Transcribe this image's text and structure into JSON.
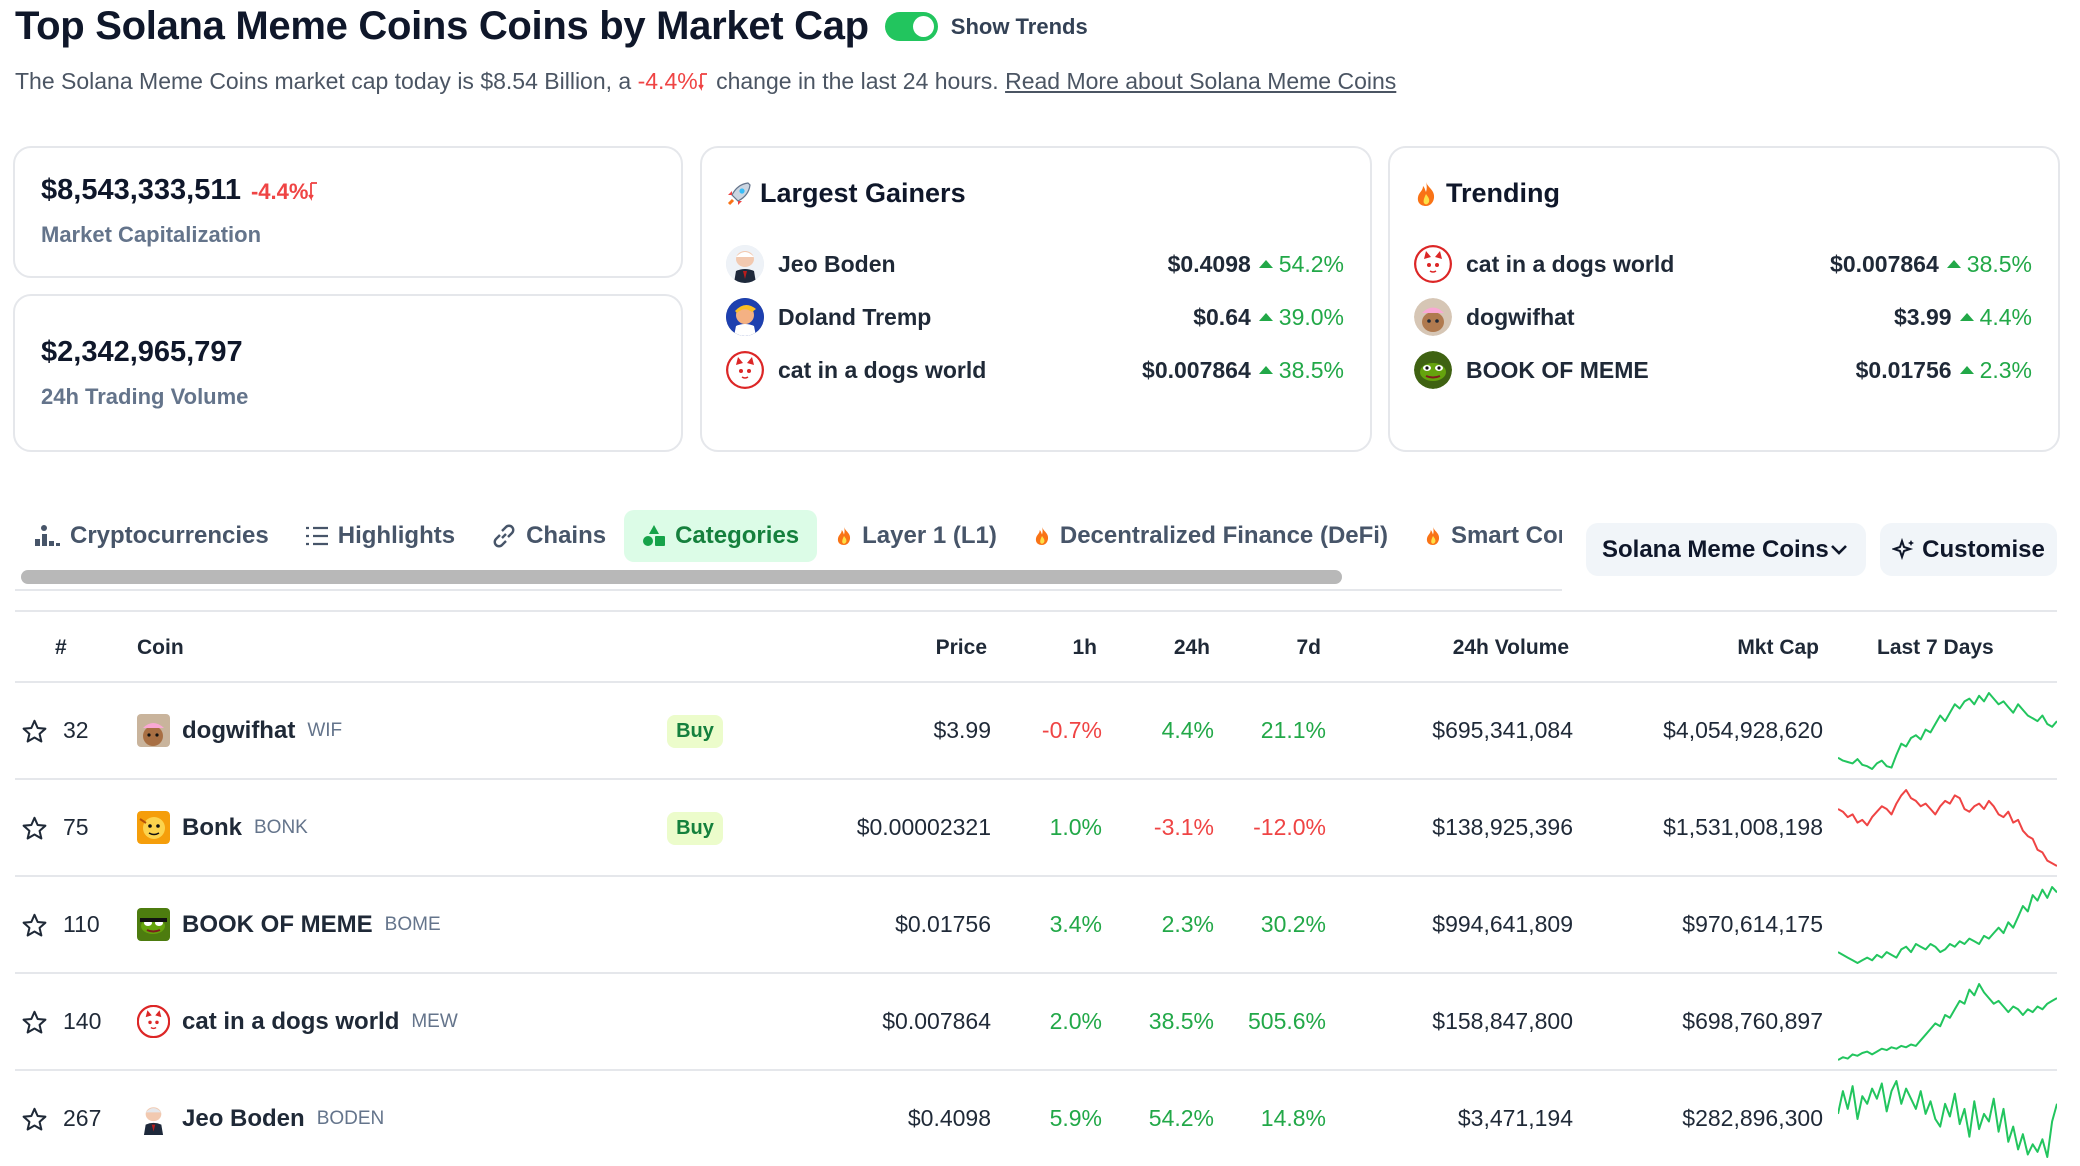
{
  "header": {
    "title": "Top Solana Meme Coins Coins by Market Cap",
    "toggle_label": "Show Trends",
    "toggle_on": true,
    "subtitle_prefix": "The Solana Meme Coins market cap today is $8.54 Billion, a",
    "subtitle_change": "-4.4%",
    "subtitle_suffix": "change in the last 24 hours.",
    "subtitle_link": "Read More about Solana Meme Coins"
  },
  "stats": {
    "market_cap": {
      "value": "$8,543,333,511",
      "change": "-4.4%",
      "label": "Market Capitalization"
    },
    "volume": {
      "value": "$2,342,965,797",
      "label": "24h Trading Volume"
    }
  },
  "gainers": {
    "title": "Largest Gainers",
    "icon": "rocket-icon",
    "items": [
      {
        "name": "Jeo Boden",
        "price": "$0.4098",
        "change": "54.2%"
      },
      {
        "name": "Doland Tremp",
        "price": "$0.64",
        "change": "39.0%"
      },
      {
        "name": "cat in a dogs world",
        "price": "$0.007864",
        "change": "38.5%"
      }
    ]
  },
  "trending": {
    "title": "Trending",
    "icon": "fire-icon",
    "items": [
      {
        "name": "cat in a dogs world",
        "price": "$0.007864",
        "change": "38.5%"
      },
      {
        "name": "dogwifhat",
        "price": "$3.99",
        "change": "4.4%"
      },
      {
        "name": "BOOK OF MEME",
        "price": "$0.01756",
        "change": "2.3%"
      }
    ]
  },
  "tabs": [
    {
      "label": "Cryptocurrencies",
      "icon": "bar-chart-icon",
      "active": false
    },
    {
      "label": "Highlights",
      "icon": "list-icon",
      "active": false
    },
    {
      "label": "Chains",
      "icon": "link-icon",
      "active": false
    },
    {
      "label": "Categories",
      "icon": "shapes-icon",
      "active": true
    },
    {
      "label": "Layer 1 (L1)",
      "icon": "fire-icon",
      "active": false
    },
    {
      "label": "Decentralized Finance (DeFi)",
      "icon": "fire-icon",
      "active": false
    },
    {
      "label": "Smart Contract Platform",
      "icon": "fire-icon",
      "active": false
    }
  ],
  "category_dropdown": {
    "label": "Solana Meme Coins"
  },
  "customise_button": {
    "label": "Customise"
  },
  "table": {
    "headers": {
      "rank": "#",
      "coin": "Coin",
      "price": "Price",
      "h1": "1h",
      "h24": "24h",
      "d7": "7d",
      "volume": "24h Volume",
      "mcap": "Mkt Cap",
      "spark": "Last 7 Days"
    },
    "buy_label": "Buy",
    "rows": [
      {
        "rank": "32",
        "name": "dogwifhat",
        "symbol": "WIF",
        "buy": true,
        "price": "$3.99",
        "h1": "-0.7%",
        "h24": "4.4%",
        "d7": "21.1%",
        "volume": "$695,341,084",
        "mcap": "$4,054,928,620",
        "trend": "up",
        "spark_color": "#22c55e",
        "spark": [
          20,
          18,
          17,
          16,
          19,
          15,
          14,
          12,
          16,
          18,
          14,
          13,
          22,
          30,
          28,
          34,
          36,
          33,
          40,
          38,
          44,
          50,
          46,
          52,
          58,
          55,
          60,
          62,
          58,
          64,
          60,
          66,
          62,
          58,
          60,
          56,
          52,
          58,
          54,
          50,
          48,
          46,
          50,
          44,
          42,
          46
        ]
      },
      {
        "rank": "75",
        "name": "Bonk",
        "symbol": "BONK",
        "buy": true,
        "price": "$0.00002321",
        "h1": "1.0%",
        "h24": "-3.1%",
        "d7": "-12.0%",
        "volume": "$138,925,396",
        "mcap": "$1,531,008,198",
        "trend": "down",
        "spark_color": "#ef4444",
        "spark": [
          50,
          48,
          44,
          46,
          40,
          42,
          38,
          44,
          48,
          52,
          50,
          46,
          54,
          60,
          64,
          58,
          56,
          52,
          54,
          50,
          46,
          52,
          56,
          54,
          60,
          58,
          50,
          48,
          52,
          54,
          50,
          56,
          52,
          46,
          44,
          48,
          40,
          42,
          34,
          30,
          28,
          20,
          18,
          12,
          10,
          8
        ]
      },
      {
        "rank": "110",
        "name": "BOOK OF MEME",
        "symbol": "BOME",
        "buy": false,
        "price": "$0.01756",
        "h1": "3.4%",
        "h24": "2.3%",
        "d7": "30.2%",
        "volume": "$994,641,809",
        "mcap": "$970,614,175",
        "trend": "up",
        "spark_color": "#22c55e",
        "spark": [
          16,
          14,
          12,
          10,
          8,
          10,
          12,
          10,
          14,
          12,
          16,
          14,
          12,
          18,
          20,
          16,
          22,
          20,
          18,
          22,
          20,
          16,
          18,
          22,
          20,
          24,
          22,
          26,
          24,
          22,
          28,
          26,
          30,
          34,
          30,
          38,
          34,
          42,
          50,
          46,
          58,
          54,
          62,
          56,
          64,
          60
        ]
      },
      {
        "rank": "140",
        "name": "cat in a dogs world",
        "symbol": "MEW",
        "buy": false,
        "price": "$0.007864",
        "h1": "2.0%",
        "h24": "38.5%",
        "d7": "505.6%",
        "volume": "$158,847,800",
        "mcap": "$698,760,897",
        "trend": "up",
        "spark_color": "#22c55e",
        "spark": [
          4,
          6,
          5,
          8,
          7,
          9,
          10,
          8,
          10,
          12,
          11,
          13,
          12,
          14,
          13,
          15,
          14,
          18,
          22,
          26,
          30,
          28,
          36,
          34,
          40,
          46,
          44,
          54,
          50,
          58,
          52,
          48,
          44,
          46,
          42,
          38,
          42,
          40,
          36,
          40,
          38,
          42,
          40,
          44,
          46,
          48
        ]
      },
      {
        "rank": "267",
        "name": "Jeo Boden",
        "symbol": "BODEN",
        "buy": false,
        "price": "$0.4098",
        "h1": "5.9%",
        "h24": "54.2%",
        "d7": "14.8%",
        "volume": "$3,471,194",
        "mcap": "$282,896,300",
        "trend": "up",
        "spark_color": "#22c55e",
        "spark": [
          40,
          58,
          44,
          62,
          36,
          54,
          48,
          60,
          52,
          64,
          42,
          58,
          66,
          48,
          60,
          52,
          44,
          58,
          40,
          50,
          36,
          30,
          48,
          38,
          56,
          32,
          44,
          22,
          50,
          28,
          40,
          34,
          52,
          26,
          44,
          18,
          30,
          12,
          24,
          8,
          16,
          10,
          20,
          6,
          34,
          48
        ]
      }
    ]
  }
}
